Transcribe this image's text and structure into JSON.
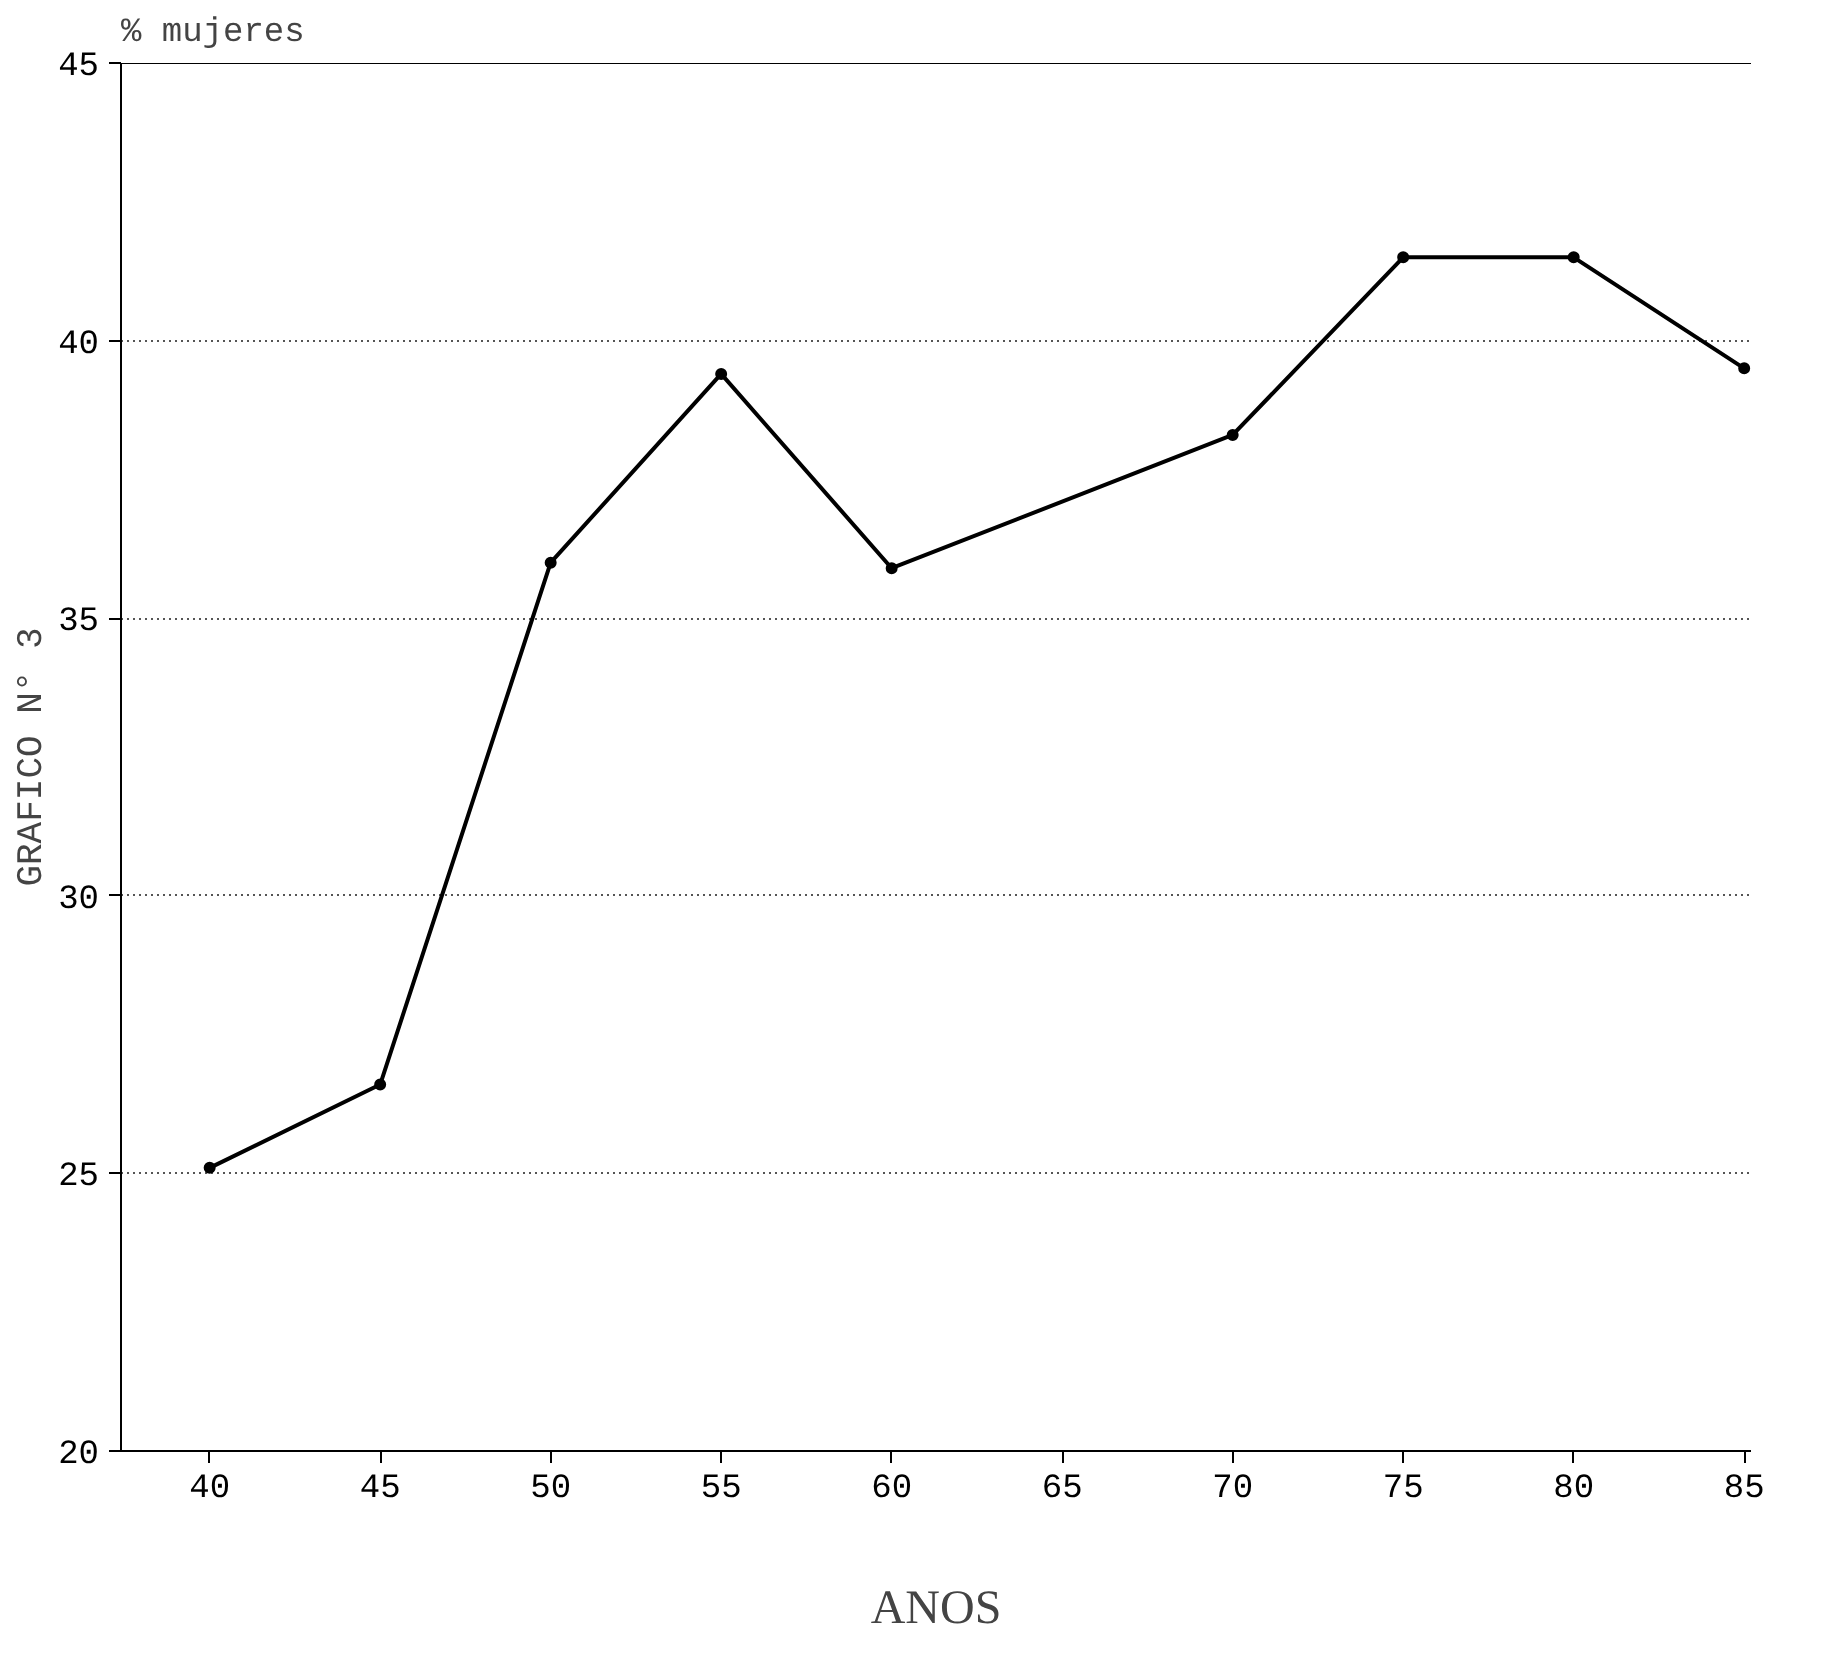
{
  "chart_data": {
    "type": "line",
    "xlabel": "ANOS",
    "ylabel": "% mujeres",
    "annotations": [
      "GRAFICO N° 3"
    ],
    "x": [
      40,
      45,
      50,
      55,
      60,
      70,
      75,
      80,
      85
    ],
    "series": [
      {
        "color": "#000000",
        "values": [
          25.1,
          26.6,
          36.0,
          39.4,
          35.9,
          38.3,
          41.5,
          41.5,
          39.5
        ]
      }
    ],
    "xlim": [
      37.4,
      85.2
    ],
    "ylim": [
      20,
      45
    ],
    "xticks": [
      40,
      45,
      50,
      55,
      60,
      65,
      70,
      75,
      80,
      85
    ],
    "yticks": [
      20,
      25,
      30,
      35,
      40,
      45
    ],
    "grid": "y",
    "marker": "circle",
    "line_style": "solid"
  }
}
